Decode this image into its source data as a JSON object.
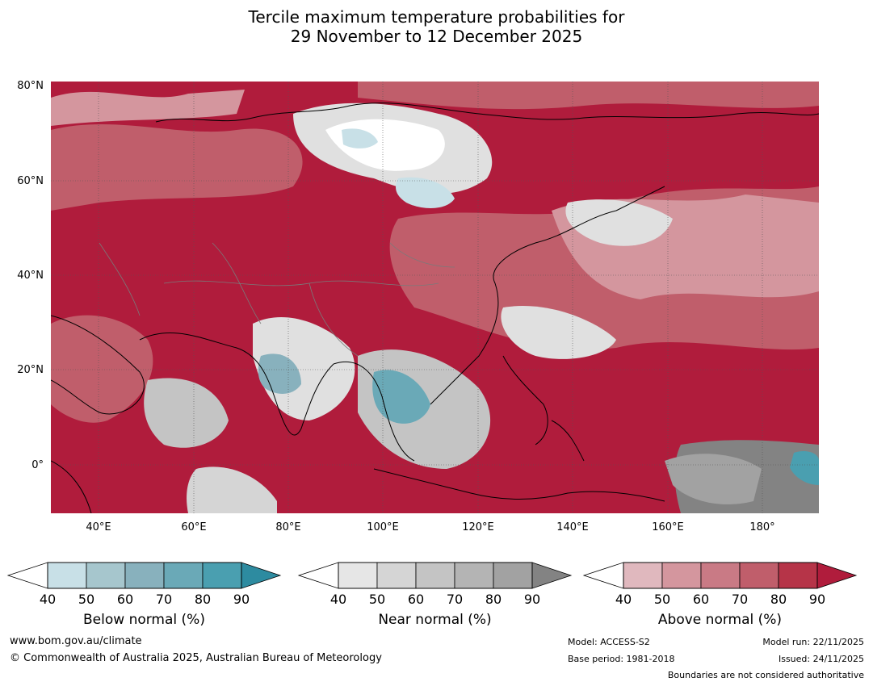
{
  "title": {
    "line1": "Tercile maximum temperature probabilities for",
    "line2": "29 November to 12 December 2025"
  },
  "map": {
    "lat_labels": [
      "80°N",
      "60°N",
      "40°N",
      "20°N",
      "0°"
    ],
    "lon_labels": [
      "40°E",
      "60°E",
      "80°E",
      "100°E",
      "120°E",
      "140°E",
      "160°E",
      "180°"
    ],
    "extent": {
      "lon_min": 30,
      "lon_max": 192,
      "lat_min": -10,
      "lat_max": 80
    }
  },
  "legends": [
    {
      "title": "Below normal (%)",
      "ticks": [
        "40",
        "50",
        "60",
        "70",
        "80",
        "90"
      ],
      "colors": [
        "#c8e0e7",
        "#a6c6cd",
        "#88b1bd",
        "#6aa9b7",
        "#4a9fb0",
        "#2d8ba0"
      ]
    },
    {
      "title": "Near normal (%)",
      "ticks": [
        "40",
        "50",
        "60",
        "70",
        "80",
        "90"
      ],
      "colors": [
        "#e6e6e6",
        "#d5d5d5",
        "#c4c4c4",
        "#b4b4b4",
        "#a2a2a2",
        "#838383"
      ]
    },
    {
      "title": "Above normal (%)",
      "ticks": [
        "40",
        "50",
        "60",
        "70",
        "80",
        "90"
      ],
      "colors": [
        "#e0b8be",
        "#d4969e",
        "#c97a85",
        "#c05e6b",
        "#b63448",
        "#b01c3c"
      ]
    }
  ],
  "footer": {
    "url": "www.bom.gov.au/climate",
    "copyright": "© Commonwealth of Australia 2025, Australian Bureau of Meteorology",
    "model": "Model: ACCESS-S2",
    "base_period": "Base period: 1981-2018",
    "model_run": "Model run: 22/11/2025",
    "issued": "Issued: 24/11/2025",
    "disclaimer": "Boundaries are not considered authoritative"
  },
  "colors": {
    "above_dark": "#b01c3c",
    "above_mid": "#c05e6b",
    "above_light": "#d4969e",
    "near_light": "#e0e0e0",
    "near_mid": "#c4c4c4",
    "near_dark": "#838383",
    "below_mid": "#6aa9b7",
    "below_light": "#c8e0e7"
  }
}
